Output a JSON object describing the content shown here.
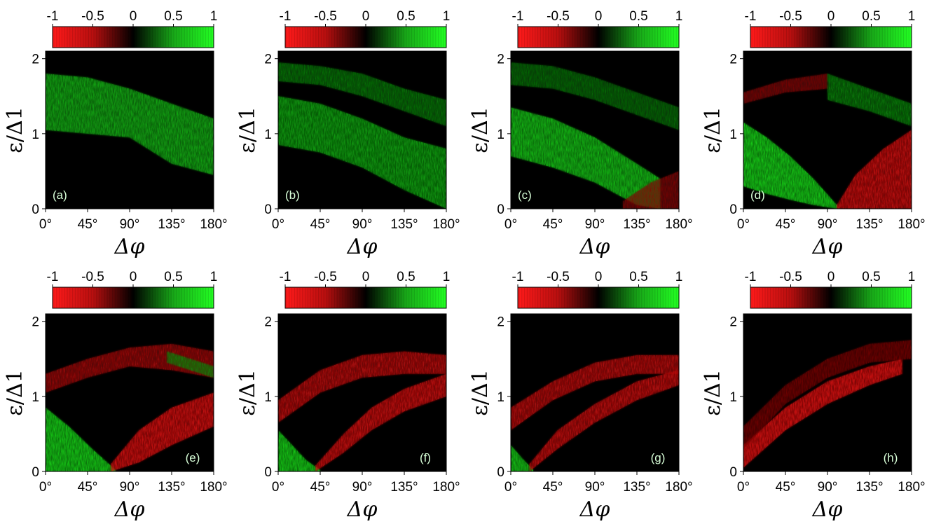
{
  "chart_data": [
    {
      "type": "heatmap",
      "panel_label": "(a)",
      "xlabel": "Δφ",
      "ylabel": "ε/Δ1",
      "x_ticks": [
        "0°",
        "45°",
        "90°",
        "135°",
        "180°"
      ],
      "y_ticks": [
        "0",
        "1",
        "2"
      ],
      "xlim": [
        0,
        180
      ],
      "ylim": [
        0,
        2.1
      ],
      "colorbar": {
        "ticks": [
          "-1",
          "-0.5",
          "0",
          "0.5",
          "1"
        ],
        "range": [
          -1,
          1
        ]
      },
      "bands": [
        {
          "x": [
            0,
            45,
            90,
            135,
            180
          ],
          "y_low": [
            1.05,
            1.0,
            0.95,
            0.6,
            0.45
          ],
          "y_high": [
            1.8,
            1.75,
            1.6,
            1.4,
            1.2
          ],
          "value": 0.6
        }
      ]
    },
    {
      "type": "heatmap",
      "panel_label": "(b)",
      "xlabel": "Δφ",
      "ylabel": "ε/Δ1",
      "x_ticks": [
        "0°",
        "45°",
        "90°",
        "135°",
        "180°"
      ],
      "y_ticks": [
        "0",
        "1",
        "2"
      ],
      "xlim": [
        0,
        180
      ],
      "ylim": [
        0,
        2.1
      ],
      "colorbar": {
        "ticks": [
          "-1",
          "-0.5",
          "0",
          "0.5",
          "1"
        ],
        "range": [
          -1,
          1
        ]
      },
      "bands": [
        {
          "x": [
            0,
            45,
            90,
            135,
            180
          ],
          "y_low": [
            0.85,
            0.75,
            0.55,
            0.25,
            0.0
          ],
          "y_high": [
            1.5,
            1.4,
            1.2,
            0.95,
            0.8
          ],
          "value": 0.55
        },
        {
          "x": [
            0,
            45,
            90,
            135,
            180
          ],
          "y_low": [
            1.7,
            1.65,
            1.5,
            1.3,
            1.1
          ],
          "y_high": [
            1.95,
            1.9,
            1.8,
            1.6,
            1.45
          ],
          "value": 0.3
        }
      ]
    },
    {
      "type": "heatmap",
      "panel_label": "(c)",
      "xlabel": "Δφ",
      "ylabel": "ε/Δ1",
      "x_ticks": [
        "0°",
        "45°",
        "90°",
        "135°",
        "180°"
      ],
      "y_ticks": [
        "0",
        "1",
        "2"
      ],
      "xlim": [
        0,
        180
      ],
      "ylim": [
        0,
        2.1
      ],
      "colorbar": {
        "ticks": [
          "-1",
          "-0.5",
          "0",
          "0.5",
          "1"
        ],
        "range": [
          -1,
          1
        ]
      },
      "bands": [
        {
          "x": [
            0,
            45,
            90,
            135,
            160
          ],
          "y_low": [
            0.7,
            0.55,
            0.35,
            0.05,
            0.0
          ],
          "y_high": [
            1.35,
            1.2,
            0.95,
            0.6,
            0.4
          ],
          "value": 0.7
        },
        {
          "x": [
            0,
            45,
            90,
            135,
            180
          ],
          "y_low": [
            1.65,
            1.6,
            1.45,
            1.25,
            1.05
          ],
          "y_high": [
            1.95,
            1.9,
            1.75,
            1.55,
            1.35
          ],
          "value": 0.25
        },
        {
          "x": [
            120,
            150,
            180
          ],
          "y_low": [
            0.0,
            0.0,
            0.0
          ],
          "y_high": [
            0.1,
            0.35,
            0.5
          ],
          "value": -0.35
        }
      ]
    },
    {
      "type": "heatmap",
      "panel_label": "(d)",
      "xlabel": "Δφ",
      "ylabel": "ε/Δ1",
      "x_ticks": [
        "0°",
        "45°",
        "90°",
        "135°",
        "180°"
      ],
      "y_ticks": [
        "0",
        "1",
        "2"
      ],
      "xlim": [
        0,
        180
      ],
      "ylim": [
        0,
        2.1
      ],
      "colorbar": {
        "ticks": [
          "-1",
          "-0.5",
          "0",
          "0.5",
          "1"
        ],
        "range": [
          -1,
          1
        ]
      },
      "bands": [
        {
          "x": [
            0,
            25,
            50,
            75,
            100
          ],
          "y_low": [
            0.3,
            0.2,
            0.12,
            0.05,
            0.0
          ],
          "y_high": [
            1.15,
            0.95,
            0.7,
            0.4,
            0.05
          ],
          "value": 0.8
        },
        {
          "x": [
            100,
            120,
            150,
            180
          ],
          "y_low": [
            0.0,
            0.0,
            0.0,
            0.0
          ],
          "y_high": [
            0.05,
            0.45,
            0.8,
            1.05
          ],
          "value": -0.75
        },
        {
          "x": [
            0,
            45,
            90
          ],
          "y_low": [
            1.4,
            1.55,
            1.6
          ],
          "y_high": [
            1.55,
            1.72,
            1.8
          ],
          "value": -0.35
        },
        {
          "x": [
            90,
            135,
            180
          ],
          "y_low": [
            1.45,
            1.3,
            1.1
          ],
          "y_high": [
            1.8,
            1.6,
            1.4
          ],
          "value": 0.35
        }
      ]
    },
    {
      "type": "heatmap",
      "panel_label": "(e)",
      "xlabel": "Δφ",
      "ylabel": "ε/Δ1",
      "x_ticks": [
        "0°",
        "45°",
        "90°",
        "135°",
        "180°"
      ],
      "y_ticks": [
        "0",
        "1",
        "2"
      ],
      "xlim": [
        0,
        180
      ],
      "ylim": [
        0,
        2.1
      ],
      "colorbar": {
        "ticks": [
          "-1",
          "-0.5",
          "0",
          "0.5",
          "1"
        ],
        "range": [
          -1,
          1
        ]
      },
      "bands": [
        {
          "x": [
            0,
            25,
            50,
            75
          ],
          "y_low": [
            0.0,
            0.0,
            0.0,
            0.0
          ],
          "y_high": [
            0.85,
            0.6,
            0.3,
            0.02
          ],
          "value": 0.8
        },
        {
          "x": [
            70,
            100,
            135,
            180
          ],
          "y_low": [
            0.0,
            0.12,
            0.35,
            0.6
          ],
          "y_high": [
            0.1,
            0.55,
            0.85,
            1.05
          ],
          "value": -0.8
        },
        {
          "x": [
            0,
            45,
            90,
            135,
            180
          ],
          "y_low": [
            1.05,
            1.25,
            1.4,
            1.35,
            1.25
          ],
          "y_high": [
            1.3,
            1.5,
            1.65,
            1.7,
            1.6
          ],
          "value": -0.5
        },
        {
          "x": [
            130,
            155,
            180
          ],
          "y_low": [
            1.45,
            1.35,
            1.25
          ],
          "y_high": [
            1.6,
            1.5,
            1.4
          ],
          "value": 0.35
        }
      ]
    },
    {
      "type": "heatmap",
      "panel_label": "(f)",
      "xlabel": "Δφ",
      "ylabel": "ε/Δ1",
      "x_ticks": [
        "0°",
        "45°",
        "90°",
        "135°",
        "180°"
      ],
      "y_ticks": [
        "0",
        "1",
        "2"
      ],
      "xlim": [
        0,
        180
      ],
      "ylim": [
        0,
        2.1
      ],
      "colorbar": {
        "ticks": [
          "-1",
          "-0.5",
          "0",
          "0.5",
          "1"
        ],
        "range": [
          -1,
          1
        ]
      },
      "bands": [
        {
          "x": [
            0,
            15,
            30,
            45
          ],
          "y_low": [
            0.0,
            0.0,
            0.0,
            0.0
          ],
          "y_high": [
            0.55,
            0.35,
            0.15,
            0.02
          ],
          "value": 0.8
        },
        {
          "x": [
            40,
            70,
            100,
            135,
            180
          ],
          "y_low": [
            0.0,
            0.25,
            0.55,
            0.8,
            1.0
          ],
          "y_high": [
            0.08,
            0.5,
            0.85,
            1.1,
            1.3
          ],
          "value": -0.75
        },
        {
          "x": [
            0,
            45,
            90,
            135,
            180
          ],
          "y_low": [
            0.65,
            1.05,
            1.25,
            1.3,
            1.3
          ],
          "y_high": [
            0.95,
            1.35,
            1.55,
            1.6,
            1.55
          ],
          "value": -0.65
        }
      ]
    },
    {
      "type": "heatmap",
      "panel_label": "(g)",
      "xlabel": "Δφ",
      "ylabel": "ε/Δ1",
      "x_ticks": [
        "0°",
        "45°",
        "90°",
        "135°",
        "180°"
      ],
      "y_ticks": [
        "0",
        "1",
        "2"
      ],
      "xlim": [
        0,
        180
      ],
      "ylim": [
        0,
        2.1
      ],
      "colorbar": {
        "ticks": [
          "-1",
          "-0.5",
          "0",
          "0.5",
          "1"
        ],
        "range": [
          -1,
          1
        ]
      },
      "bands": [
        {
          "x": [
            0,
            12,
            24
          ],
          "y_low": [
            0.0,
            0.0,
            0.0
          ],
          "y_high": [
            0.35,
            0.18,
            0.02
          ],
          "value": 0.75
        },
        {
          "x": [
            20,
            50,
            90,
            135,
            180
          ],
          "y_low": [
            0.0,
            0.3,
            0.65,
            0.95,
            1.15
          ],
          "y_high": [
            0.1,
            0.55,
            0.9,
            1.2,
            1.35
          ],
          "value": -0.7
        },
        {
          "x": [
            0,
            45,
            90,
            135,
            180
          ],
          "y_low": [
            0.55,
            0.95,
            1.2,
            1.3,
            1.3
          ],
          "y_high": [
            0.85,
            1.2,
            1.45,
            1.55,
            1.55
          ],
          "value": -0.65
        }
      ]
    },
    {
      "type": "heatmap",
      "panel_label": "(h)",
      "xlabel": "Δφ",
      "ylabel": "ε/Δ1",
      "x_ticks": [
        "0°",
        "45°",
        "90°",
        "135°",
        "180°"
      ],
      "y_ticks": [
        "0",
        "1",
        "2"
      ],
      "xlim": [
        0,
        180
      ],
      "ylim": [
        0,
        2.1
      ],
      "colorbar": {
        "ticks": [
          "-1",
          "-0.5",
          "0",
          "0.5",
          "1"
        ],
        "range": [
          -1,
          1
        ]
      },
      "bands": [
        {
          "x": [
            0,
            45,
            90,
            135,
            170
          ],
          "y_low": [
            0.05,
            0.55,
            0.9,
            1.15,
            1.3
          ],
          "y_high": [
            0.35,
            0.85,
            1.2,
            1.4,
            1.5
          ],
          "value": -0.85
        },
        {
          "x": [
            0,
            45,
            90,
            135,
            180
          ],
          "y_low": [
            0.3,
            0.9,
            1.25,
            1.45,
            1.5
          ],
          "y_high": [
            0.6,
            1.15,
            1.5,
            1.7,
            1.75
          ],
          "value": -0.3
        }
      ]
    }
  ]
}
